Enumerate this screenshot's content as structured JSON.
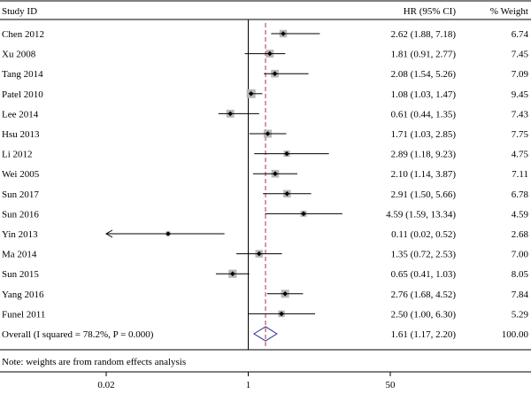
{
  "chart_data": {
    "type": "forest",
    "headers": {
      "study": "Study ID",
      "hr": "HR (95% CI)",
      "weight": "% Weight"
    },
    "studies": [
      {
        "label": "Chen 2012",
        "hr": 2.62,
        "lower": 1.88,
        "upper": 7.18,
        "hr_text": "2.62 (1.88, 7.18)",
        "weight": 6.74,
        "weight_text": "6.74"
      },
      {
        "label": "Xu 2008",
        "hr": 1.81,
        "lower": 0.91,
        "upper": 2.77,
        "hr_text": "1.81 (0.91, 2.77)",
        "weight": 7.45,
        "weight_text": "7.45"
      },
      {
        "label": "Tang 2014",
        "hr": 2.08,
        "lower": 1.54,
        "upper": 5.26,
        "hr_text": "2.08 (1.54, 5.26)",
        "weight": 7.09,
        "weight_text": "7.09"
      },
      {
        "label": "Patel 2010",
        "hr": 1.08,
        "lower": 1.03,
        "upper": 1.47,
        "hr_text": "1.08 (1.03, 1.47)",
        "weight": 9.45,
        "weight_text": "9.45"
      },
      {
        "label": "Lee 2014",
        "hr": 0.61,
        "lower": 0.44,
        "upper": 1.35,
        "hr_text": "0.61 (0.44, 1.35)",
        "weight": 7.43,
        "weight_text": "7.43"
      },
      {
        "label": "Hsu 2013",
        "hr": 1.71,
        "lower": 1.03,
        "upper": 2.85,
        "hr_text": "1.71 (1.03, 2.85)",
        "weight": 7.75,
        "weight_text": "7.75"
      },
      {
        "label": "Li 2012",
        "hr": 2.89,
        "lower": 1.18,
        "upper": 9.23,
        "hr_text": "2.89 (1.18, 9.23)",
        "weight": 4.75,
        "weight_text": "4.75"
      },
      {
        "label": "Wei 2005",
        "hr": 2.1,
        "lower": 1.14,
        "upper": 3.87,
        "hr_text": "2.10 (1.14, 3.87)",
        "weight": 7.11,
        "weight_text": "7.11"
      },
      {
        "label": "Sun 2017",
        "hr": 2.91,
        "lower": 1.5,
        "upper": 5.66,
        "hr_text": "2.91 (1.50, 5.66)",
        "weight": 6.78,
        "weight_text": "6.78"
      },
      {
        "label": "Sun 2016",
        "hr": 4.59,
        "lower": 1.59,
        "upper": 13.34,
        "hr_text": "4.59 (1.59, 13.34)",
        "weight": 4.59,
        "weight_text": "4.59"
      },
      {
        "label": "Yin 2013",
        "hr": 0.11,
        "lower": 0.02,
        "upper": 0.52,
        "hr_text": "0.11 (0.02, 0.52)",
        "weight": 2.68,
        "weight_text": "2.68",
        "lower_truncated": true
      },
      {
        "label": "Ma 2014",
        "hr": 1.35,
        "lower": 0.72,
        "upper": 2.53,
        "hr_text": "1.35 (0.72, 2.53)",
        "weight": 7.0,
        "weight_text": "7.00"
      },
      {
        "label": "Sun 2015",
        "hr": 0.65,
        "lower": 0.41,
        "upper": 1.03,
        "hr_text": "0.65 (0.41, 1.03)",
        "weight": 8.05,
        "weight_text": "8.05"
      },
      {
        "label": "Yang 2016",
        "hr": 2.76,
        "lower": 1.68,
        "upper": 4.52,
        "hr_text": "2.76 (1.68, 4.52)",
        "weight": 7.84,
        "weight_text": "7.84"
      },
      {
        "label": "Funel 2011",
        "hr": 2.5,
        "lower": 1.0,
        "upper": 6.3,
        "hr_text": "2.50 (1.00, 6.30)",
        "weight": 5.29,
        "weight_text": "5.29"
      }
    ],
    "overall": {
      "label": "Overall (I squared = 78.2%, P = 0.000)",
      "hr": 1.61,
      "lower": 1.17,
      "upper": 2.2,
      "hr_text": "1.61 (1.17, 2.20)",
      "weight_text": "100.00"
    },
    "note": "Note: weights are from random effects analysis",
    "x_scale": "log",
    "x_ticks": [
      {
        "value": 0.02,
        "label": "0.02"
      },
      {
        "value": 1,
        "label": "1"
      },
      {
        "value": 50,
        "label": "50"
      }
    ],
    "xlim": [
      0.02,
      50
    ],
    "null_line": 1,
    "colors": {
      "box": "#b8b8b8",
      "line": "#000000",
      "overall_line": "#b03040",
      "diamond": "#2a2a9a"
    }
  }
}
